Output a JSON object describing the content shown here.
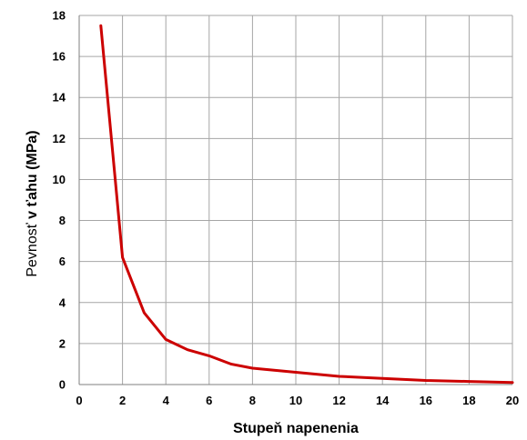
{
  "chart_data": {
    "type": "line",
    "xlabel": "Stupeň napenenia",
    "ylabel_light": "Pevnosť",
    "ylabel_bold": " v ťahu (MPa)",
    "xlim": [
      0,
      20
    ],
    "ylim": [
      0,
      18
    ],
    "x_ticks": [
      0,
      2,
      4,
      6,
      8,
      10,
      12,
      14,
      16,
      18,
      20
    ],
    "y_ticks": [
      0,
      2,
      4,
      6,
      8,
      10,
      12,
      14,
      16,
      18
    ],
    "grid": "horizontal-and-vertical",
    "series": [
      {
        "color": "#cc0000",
        "x": [
          1,
          2,
          3,
          4,
          5,
          6,
          7,
          8,
          10,
          12,
          14,
          16,
          18,
          20
        ],
        "y": [
          17.5,
          6.2,
          3.5,
          2.2,
          1.7,
          1.4,
          1.0,
          0.8,
          0.6,
          0.4,
          0.3,
          0.2,
          0.15,
          0.1
        ]
      }
    ]
  }
}
